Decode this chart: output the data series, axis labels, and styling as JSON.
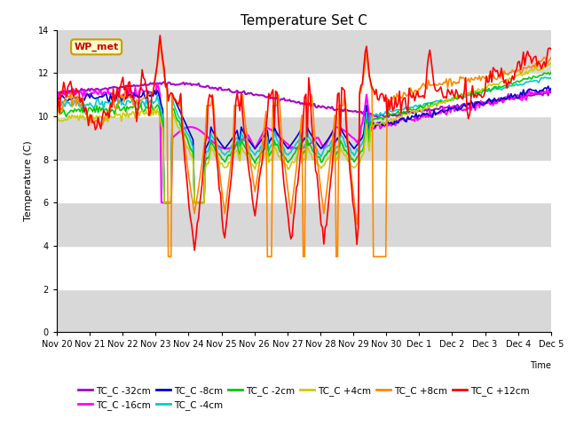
{
  "title": "Temperature Set C",
  "xlabel": "Time",
  "ylabel": "Temperature (C)",
  "ylim": [
    0,
    14
  ],
  "yticks": [
    0,
    2,
    4,
    6,
    8,
    10,
    12,
    14
  ],
  "background_color": "#ffffff",
  "plot_bg_color": "#d8d8d8",
  "annotation_text": "WP_met",
  "annotation_box_color": "#ffffcc",
  "annotation_box_edge": "#cc9900",
  "annotation_text_color": "#cc0000",
  "band_colors": [
    "#d8d8d8",
    "#ffffff",
    "#d8d8d8",
    "#ffffff",
    "#d8d8d8",
    "#ffffff",
    "#d8d8d8"
  ],
  "series": [
    {
      "label": "TC_C -32cm",
      "color": "#aa00cc"
    },
    {
      "label": "TC_C -16cm",
      "color": "#ff00ff"
    },
    {
      "label": "TC_C -8cm",
      "color": "#0000cc"
    },
    {
      "label": "TC_C -4cm",
      "color": "#00cccc"
    },
    {
      "label": "TC_C -2cm",
      "color": "#00cc00"
    },
    {
      "label": "TC_C +4cm",
      "color": "#cccc00"
    },
    {
      "label": "TC_C +8cm",
      "color": "#ff8800"
    },
    {
      "label": "TC_C +12cm",
      "color": "#ff0000"
    }
  ],
  "date_labels": [
    "Nov 20",
    "Nov 21",
    "Nov 22",
    "Nov 23",
    "Nov 24",
    "Nov 25",
    "Nov 26",
    "Nov 27",
    "Nov 28",
    "Nov 29",
    "Nov 30",
    "Dec 1",
    "Dec 2",
    "Dec 3",
    "Dec 4",
    "Dec 5"
  ],
  "n_points": 360,
  "figsize": [
    6.4,
    4.8
  ],
  "dpi": 100
}
